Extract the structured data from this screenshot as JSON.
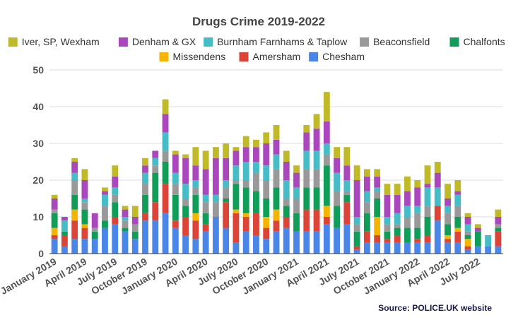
{
  "chart_data": {
    "type": "bar",
    "stacked": true,
    "title": "Drugs Crime 2019-2022",
    "source": "Source: POLICE.UK website",
    "ylim": [
      0,
      50
    ],
    "yticks": [
      0,
      10,
      20,
      30,
      40,
      50
    ],
    "grid": true,
    "legend_position": "top",
    "categories": [
      "2019-01",
      "2019-02",
      "2019-03",
      "2019-04",
      "2019-05",
      "2019-06",
      "2019-07",
      "2019-08",
      "2019-09",
      "2019-10",
      "2019-11",
      "2019-12",
      "2020-01",
      "2020-02",
      "2020-03",
      "2020-04",
      "2020-05",
      "2020-06",
      "2020-07",
      "2020-08",
      "2020-09",
      "2020-10",
      "2020-11",
      "2020-12",
      "2021-01",
      "2021-02",
      "2021-03",
      "2021-04",
      "2021-05",
      "2021-06",
      "2021-07",
      "2021-08",
      "2021-09",
      "2021-10",
      "2021-11",
      "2021-12",
      "2022-01",
      "2022-02",
      "2022-03",
      "2022-04",
      "2022-05",
      "2022-06",
      "2022-07",
      "2022-08",
      "2022-09"
    ],
    "x_tick_labels": [
      {
        "index": 0,
        "label": "January 2019"
      },
      {
        "index": 3,
        "label": "April 2019"
      },
      {
        "index": 6,
        "label": "July 2019"
      },
      {
        "index": 9,
        "label": "October 2019"
      },
      {
        "index": 12,
        "label": "January 2020"
      },
      {
        "index": 15,
        "label": "April 2020"
      },
      {
        "index": 18,
        "label": "July 2020"
      },
      {
        "index": 21,
        "label": "October 2020"
      },
      {
        "index": 24,
        "label": "January 2021"
      },
      {
        "index": 27,
        "label": "April 2021"
      },
      {
        "index": 30,
        "label": "July 2021"
      },
      {
        "index": 33,
        "label": "October 2021"
      },
      {
        "index": 36,
        "label": "January 2022"
      },
      {
        "index": 39,
        "label": "April 2022"
      },
      {
        "index": 42,
        "label": "July 2022"
      }
    ],
    "series": [
      {
        "name": "Chesham",
        "color": "#4a86e8",
        "values": [
          4,
          2,
          4,
          4,
          4,
          7,
          8,
          6,
          4,
          9,
          9,
          11,
          7,
          5,
          4,
          6,
          10,
          7,
          3,
          6,
          5,
          4,
          6,
          7,
          6,
          6,
          6,
          8,
          7,
          8,
          1,
          3,
          3,
          3,
          3,
          3,
          3,
          3,
          9,
          3,
          3,
          1,
          2,
          2,
          2
        ]
      },
      {
        "name": "Amersham",
        "color": "#db4437",
        "values": [
          1,
          3,
          5,
          3,
          0,
          0,
          2,
          0,
          0,
          2,
          5,
          8,
          2,
          5,
          5,
          2,
          0,
          7,
          8,
          4,
          6,
          3,
          3,
          3,
          0,
          6,
          6,
          2,
          0,
          6,
          1,
          3,
          2,
          1,
          2,
          0,
          1,
          2,
          4,
          1,
          3,
          1,
          0,
          0,
          4
        ]
      },
      {
        "name": "Missendens",
        "color": "#f4b400",
        "values": [
          2,
          0,
          3,
          1,
          0,
          0,
          0,
          0,
          0,
          0,
          0,
          0,
          0,
          0,
          2,
          0,
          0,
          0,
          1,
          1,
          0,
          3,
          3,
          0,
          0,
          0,
          0,
          3,
          0,
          0,
          0,
          0,
          5,
          0,
          0,
          0,
          0,
          0,
          0,
          1,
          1,
          2,
          0,
          0,
          0
        ]
      },
      {
        "name": "Chalfonts",
        "color": "#0f9d58",
        "values": [
          4,
          1,
          4,
          4,
          2,
          2,
          4,
          1,
          2,
          5,
          8,
          6,
          7,
          3,
          5,
          3,
          0,
          1,
          7,
          7,
          6,
          5,
          6,
          3,
          5,
          6,
          6,
          11,
          6,
          2,
          4,
          5,
          5,
          2,
          2,
          4,
          3,
          5,
          0,
          3,
          3,
          1,
          4,
          0,
          1
        ]
      },
      {
        "name": "Beaconsfield",
        "color": "#999999",
        "values": [
          1,
          0,
          4,
          2,
          1,
          4,
          2,
          2,
          2,
          3,
          2,
          3,
          3,
          2,
          2,
          3,
          4,
          3,
          1,
          2,
          5,
          5,
          5,
          2,
          4,
          5,
          5,
          3,
          4,
          1,
          2,
          3,
          2,
          2,
          1,
          3,
          4,
          3,
          0,
          3,
          3,
          1,
          0,
          0,
          1
        ]
      },
      {
        "name": "Burnham Farnhams & Taplow",
        "color": "#46bdc6",
        "values": [
          0,
          3,
          2,
          1,
          0,
          3,
          2,
          1,
          0,
          3,
          2,
          5,
          3,
          4,
          2,
          2,
          2,
          2,
          4,
          5,
          3,
          4,
          4,
          5,
          3,
          5,
          5,
          3,
          5,
          3,
          2,
          3,
          1,
          2,
          3,
          3,
          2,
          5,
          5,
          2,
          3,
          2,
          0,
          3,
          0
        ]
      },
      {
        "name": "Denham & GX",
        "color": "#ab47bc",
        "values": [
          3,
          1,
          3,
          5,
          4,
          1,
          3,
          2,
          2,
          2,
          2,
          5,
          5,
          7,
          4,
          7,
          10,
          6,
          4,
          4,
          4,
          6,
          4,
          5,
          4,
          5,
          6,
          6,
          4,
          4,
          10,
          4,
          3,
          6,
          5,
          4,
          5,
          1,
          4,
          2,
          1,
          2,
          1,
          0,
          2
        ]
      },
      {
        "name": "Iver, SP, Wexham",
        "color": "#c0ba28",
        "values": [
          1,
          0,
          1,
          3,
          0,
          1,
          3,
          1,
          3,
          2,
          0,
          4,
          1,
          1,
          5,
          5,
          3,
          4,
          1,
          3,
          2,
          3,
          4,
          3,
          2,
          2,
          4,
          8,
          3,
          5,
          4,
          2,
          2,
          3,
          3,
          4,
          2,
          5,
          3,
          4,
          3,
          1,
          1,
          0,
          2
        ]
      }
    ],
    "legend_rows": [
      [
        "Iver, SP, Wexham",
        "Denham & GX",
        "Burnham Farnhams & Taplow",
        "Beaconsfield",
        "Chalfonts"
      ],
      [
        "Missendens",
        "Amersham",
        "Chesham"
      ]
    ]
  }
}
